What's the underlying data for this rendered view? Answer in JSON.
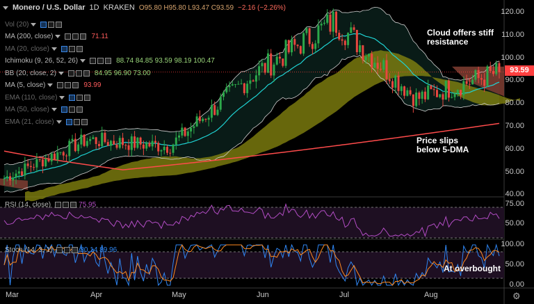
{
  "header": {
    "symbol": "Monero / U.S. Dollar",
    "interval": "1D",
    "exchange": "KRAKEN",
    "ohlc": "O95.80  H95.80  L93.47  C93.59",
    "change": "−2.16 (−2.26%)"
  },
  "indicators": [
    {
      "label": "Vol (20)",
      "value": "",
      "dim": true
    },
    {
      "label": "MA (200, close)",
      "value": "71.11",
      "value_color": "#ff5c5c",
      "dim": false
    },
    {
      "label": "MA (20, close)",
      "value": "",
      "dim": true
    },
    {
      "label": "Ichimoku (9, 26, 52, 26)",
      "value": "88.74  84.85  93.59  98.19  100.47",
      "dim": false
    },
    {
      "label": "BB (20, close, 2)",
      "value": "84.95  96.90  73.00",
      "dim": false
    },
    {
      "label": "MA (5, close)",
      "value": "93.99",
      "value_color": "#ff5c5c",
      "dim": false
    },
    {
      "label": "EMA (110, close)",
      "value": "",
      "dim": true
    },
    {
      "label": "MA (50, close)",
      "value": "",
      "dim": true
    },
    {
      "label": "EMA (21, close)",
      "value": "",
      "dim": true
    }
  ],
  "price_axis": [
    "120.00",
    "110.00",
    "100.00",
    "90.00",
    "80.00",
    "70.00",
    "60.00",
    "50.00",
    "40.00"
  ],
  "last_price": "93.59",
  "rsi": {
    "label": "RSI (14, close)",
    "value": "75.95",
    "axis": [
      "75.00",
      "50.00"
    ]
  },
  "stoch": {
    "label": "Stoch (14, 3, 1)",
    "values": "80.14  89.96",
    "axis": [
      "100.00",
      "50.00",
      "0.00"
    ]
  },
  "date_axis": [
    "Mar",
    "Apr",
    "May",
    "Jun",
    "Jul",
    "Aug"
  ],
  "annotations": {
    "cloud": "Cloud offers stiff\nresistance",
    "price": "Price slips\nbelow 5-DMA",
    "overbought": "At overbought"
  },
  "colors": {
    "background": "#000000",
    "bull": "#2ca84a",
    "bear": "#e8473f",
    "ma200": "#ff4b4b",
    "bb_basis": "#1fd3d3",
    "bb_band": "#cfcfcf",
    "cloud_bull": "#8a8a10",
    "cloud_bear": "#7a3b30",
    "rsi": "#b34dc5",
    "stoch_k": "#2f86f3",
    "stoch_d": "#ff8a20"
  },
  "chart_data": {
    "type": "candlestick",
    "period": {
      "start": "2019-02-23",
      "end": "2019-08-13",
      "interval": "1D"
    },
    "key_closes": [
      {
        "date": "2019-03-01",
        "close": 47
      },
      {
        "date": "2019-03-31",
        "close": 64
      },
      {
        "date": "2019-04-30",
        "close": 61
      },
      {
        "date": "2019-05-31",
        "close": 92
      },
      {
        "date": "2019-06-23",
        "close": 116
      },
      {
        "date": "2019-07-31",
        "close": 82
      },
      {
        "date": "2019-08-13",
        "close": 93.59
      }
    ],
    "ma200_last": 71.11,
    "bb_last": {
      "basis": 84.95,
      "upper": 96.9,
      "lower": 73.0
    },
    "ma5_last": 93.99,
    "rsi_last": 75.95,
    "stoch_last": {
      "k": 80.14,
      "d": 89.96
    },
    "ylim": [
      40,
      122
    ]
  }
}
